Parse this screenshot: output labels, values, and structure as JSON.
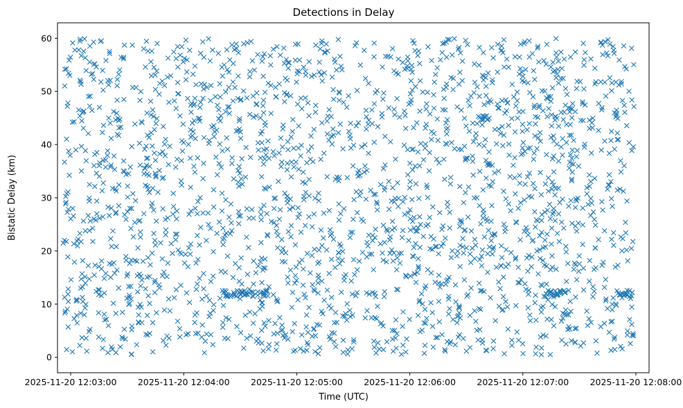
{
  "chart_data": {
    "type": "scatter",
    "title": "Detections in Delay",
    "xlabel": "Time (UTC)",
    "ylabel": "Bistatic Delay (km)",
    "xlim": [
      "2025-11-20T12:02:53",
      "2025-11-20T12:08:07"
    ],
    "ylim": [
      -2.9,
      62.9
    ],
    "x_ticks": [
      {
        "t": "2025-11-20T12:03:00",
        "label": "2025-11-20 12:03:00"
      },
      {
        "t": "2025-11-20T12:04:00",
        "label": "2025-11-20 12:04:00"
      },
      {
        "t": "2025-11-20T12:05:00",
        "label": "2025-11-20 12:05:00"
      },
      {
        "t": "2025-11-20T12:06:00",
        "label": "2025-11-20 12:06:00"
      },
      {
        "t": "2025-11-20T12:07:00",
        "label": "2025-11-20 12:07:00"
      },
      {
        "t": "2025-11-20T12:08:00",
        "label": "2025-11-20 12:08:00"
      }
    ],
    "y_ticks": [
      0,
      10,
      20,
      30,
      40,
      50,
      60
    ],
    "marker": "x",
    "color": "#1f77b4",
    "grid": false,
    "x_range": [
      "2025-11-20T12:02:56",
      "2025-11-20T12:07:59"
    ],
    "y_range": [
      0.5,
      60
    ],
    "point_count": 2200,
    "clusters": [
      {
        "x_start": "2025-11-20T12:04:20",
        "x_end": "2025-11-20T12:04:45",
        "y": 12
      },
      {
        "x_start": "2025-11-20T12:07:13",
        "x_end": "2025-11-20T12:07:23",
        "y": 12
      },
      {
        "x_start": "2025-11-20T12:07:50",
        "x_end": "2025-11-20T12:07:59",
        "y": 11.5
      },
      {
        "x_start": "2025-11-20T12:06:37",
        "x_end": "2025-11-20T12:06:43",
        "y": 45
      }
    ]
  }
}
